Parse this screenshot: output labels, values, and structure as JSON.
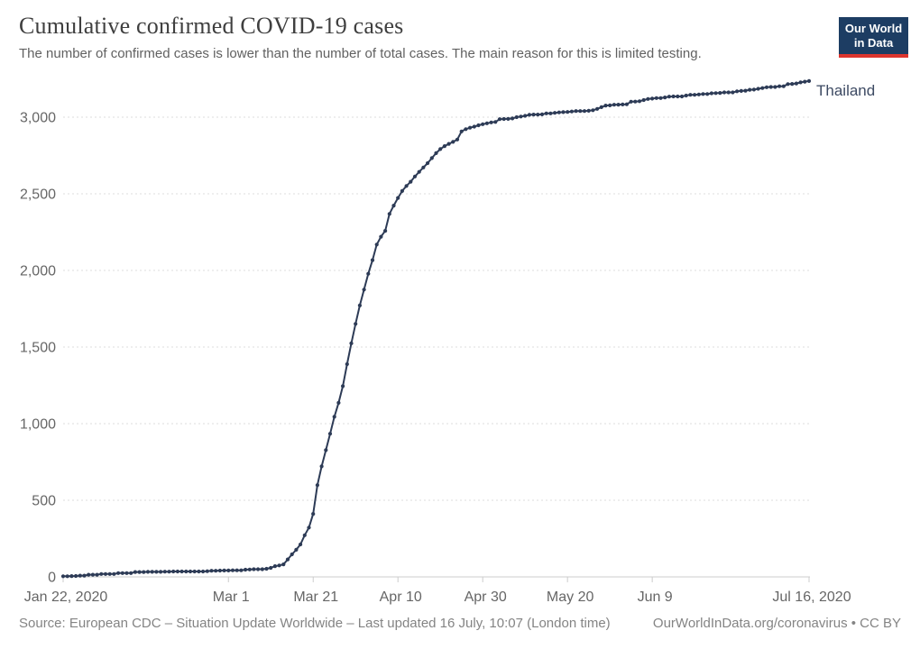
{
  "header": {
    "title": "Cumulative confirmed COVID-19 cases",
    "subtitle": "The number of confirmed cases is lower than the number of total cases. The main reason for this is limited testing.",
    "logo": {
      "line1": "Our World",
      "line2": "in Data",
      "bg_color": "#1d3d63",
      "accent_color": "#dc352e"
    }
  },
  "footer": {
    "source": "Source: European CDC – Situation Update Worldwide – Last updated 16 July, 10:07 (London time)",
    "attribution": "OurWorldInData.org/coronavirus • CC BY"
  },
  "chart_data": {
    "type": "line",
    "title": "Cumulative confirmed COVID-19 cases",
    "xlabel": "",
    "ylabel": "",
    "x_start_date": "Jan 22, 2020",
    "x_end_date": "Jul 16, 2020",
    "frequency": "daily",
    "grid": "horizontal-dashed",
    "legend_position": "end-of-line-label",
    "ylim": [
      0,
      3236
    ],
    "y_ticks": [
      0,
      500,
      1000,
      1500,
      2000,
      2500,
      3000
    ],
    "y_tick_labels": [
      "0",
      "500",
      "1,000",
      "1,500",
      "2,000",
      "2,500",
      "3,000"
    ],
    "x_ticks": [
      {
        "label": "Jan 22, 2020",
        "day": 0
      },
      {
        "label": "Mar 1",
        "day": 39
      },
      {
        "label": "Mar 21",
        "day": 59
      },
      {
        "label": "Apr 10",
        "day": 79
      },
      {
        "label": "Apr 30",
        "day": 99
      },
      {
        "label": "May 20",
        "day": 119
      },
      {
        "label": "Jun 9",
        "day": 139
      },
      {
        "label": "Jul 16, 2020",
        "day": 176
      }
    ],
    "colors": {
      "line": "#2d3b56",
      "marker": "#2d3b56",
      "entity_label": "#3d4a63",
      "gridline": "#dedede",
      "axis": "#cccccc",
      "tick_label": "#666666"
    },
    "series": [
      {
        "name": "Thailand",
        "end_value": 3236,
        "values": [
          4,
          4,
          5,
          6,
          8,
          8,
          14,
          14,
          14,
          19,
          19,
          19,
          19,
          25,
          25,
          25,
          25,
          32,
          32,
          32,
          33,
          33,
          33,
          33,
          34,
          34,
          35,
          35,
          35,
          35,
          35,
          35,
          35,
          35,
          37,
          40,
          40,
          41,
          42,
          42,
          43,
          43,
          43,
          47,
          48,
          50,
          50,
          50,
          53,
          59,
          70,
          75,
          82,
          114,
          147,
          177,
          212,
          272,
          322,
          411,
          599,
          721,
          827,
          934,
          1045,
          1136,
          1245,
          1388,
          1524,
          1651,
          1771,
          1875,
          1978,
          2067,
          2169,
          2220,
          2258,
          2369,
          2423,
          2473,
          2518,
          2551,
          2579,
          2613,
          2643,
          2672,
          2700,
          2733,
          2765,
          2792,
          2811,
          2826,
          2839,
          2854,
          2907,
          2922,
          2931,
          2938,
          2947,
          2954,
          2960,
          2966,
          2969,
          2987,
          2988,
          2989,
          2992,
          3000,
          3004,
          3009,
          3015,
          3017,
          3017,
          3018,
          3025,
          3025,
          3028,
          3031,
          3033,
          3034,
          3037,
          3040,
          3040,
          3040,
          3042,
          3045,
          3054,
          3065,
          3076,
          3077,
          3081,
          3082,
          3083,
          3084,
          3101,
          3102,
          3104,
          3112,
          3119,
          3121,
          3125,
          3125,
          3129,
          3134,
          3135,
          3135,
          3135,
          3141,
          3146,
          3146,
          3148,
          3151,
          3151,
          3156,
          3157,
          3158,
          3162,
          3162,
          3162,
          3169,
          3171,
          3173,
          3179,
          3180,
          3185,
          3190,
          3195,
          3197,
          3197,
          3202,
          3202,
          3216,
          3217,
          3220,
          3227,
          3232,
          3236
        ]
      }
    ]
  }
}
